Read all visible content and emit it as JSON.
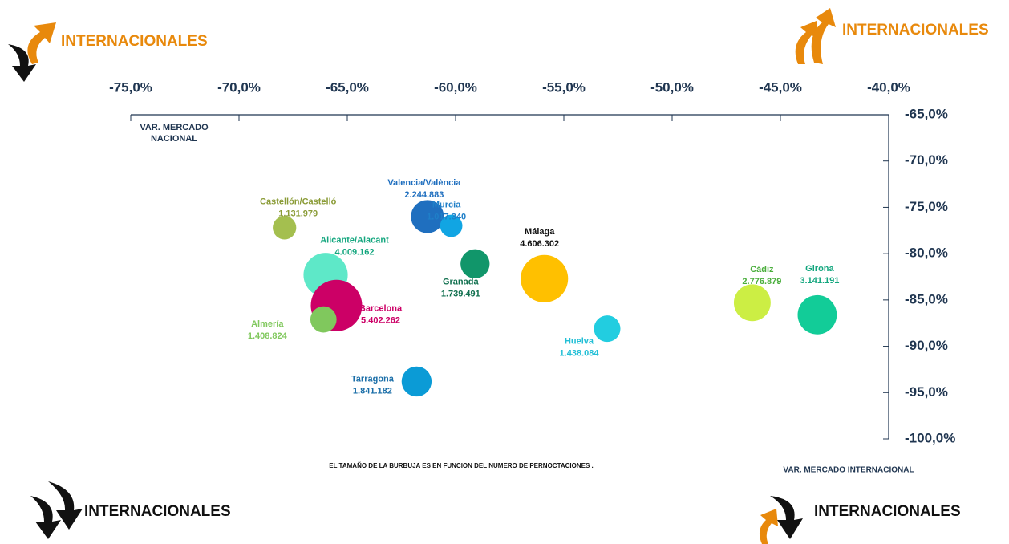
{
  "chart_data": {
    "type": "bubble",
    "xlabel": "VAR. MERCADO INTERNACIONAL",
    "ylabel": "VAR. MERCADO NACIONAL",
    "note": "EL TAMAÑO DE LA BURBUJA ES EN FUNCION  DEL NUMERO DE PERNOCTACIONES .",
    "corner_labels": [
      "INTERNACIONALES",
      "INTERNACIONALES",
      "INTERNACIONALES",
      "INTERNACIONALES"
    ],
    "xlim": [
      -75,
      -40
    ],
    "xticks": [
      {
        "value": -75,
        "label": "-75,0%"
      },
      {
        "value": -70,
        "label": "-70,0%"
      },
      {
        "value": -65,
        "label": "-65,0%"
      },
      {
        "value": -60,
        "label": "-60,0%"
      },
      {
        "value": -55,
        "label": "-55,0%"
      },
      {
        "value": -50,
        "label": "-50,0%"
      },
      {
        "value": -45,
        "label": "-45,0%"
      },
      {
        "value": -40,
        "label": "-40,0%"
      }
    ],
    "ylim": [
      -100,
      -65
    ],
    "yticks": [
      {
        "value": -65,
        "label": "-65,0%"
      },
      {
        "value": -70,
        "label": "-70,0%"
      },
      {
        "value": -75,
        "label": "-75,0%"
      },
      {
        "value": -80,
        "label": "-80,0%"
      },
      {
        "value": -85,
        "label": "-85,0%"
      },
      {
        "value": -90,
        "label": "-90,0%"
      },
      {
        "value": -95,
        "label": "-95,0%"
      },
      {
        "value": -100,
        "label": "-100,0%"
      }
    ],
    "series": [
      {
        "name": "Castellón/Castelló",
        "color": "#a4bf4f",
        "label_color": "#8a9b36",
        "x": -67.9,
        "y": -77.2,
        "size": 1131979,
        "size_label": "1.131.979"
      },
      {
        "name": "Valencia/València",
        "color": "#1f6fbf",
        "label_color": "#1f6fbf",
        "x": -61.3,
        "y": -76.0,
        "size": 2244883,
        "size_label": "2.244.883"
      },
      {
        "name": "Murcia",
        "color": "#11a5e3",
        "label_color": "#1f7fc8",
        "x": -60.2,
        "y": -77.0,
        "size": 1017340,
        "size_label": "1.017.340"
      },
      {
        "name": "Alicante/Alacant",
        "color": "#5ee8c8",
        "label_color": "#13a67e",
        "x": -66.0,
        "y": -82.3,
        "size": 4009162,
        "size_label": "4.009.162"
      },
      {
        "name": "Barcelona",
        "color": "#cc0066",
        "label_color": "#cc0066",
        "x": -65.5,
        "y": -85.6,
        "size": 5402262,
        "size_label": "5.402.262"
      },
      {
        "name": "Almería",
        "color": "#80c85d",
        "label_color": "#80c85d",
        "x": -66.1,
        "y": -87.1,
        "size": 1408824,
        "size_label": "1.408.824"
      },
      {
        "name": "Granada",
        "color": "#11966a",
        "label_color": "#11704f",
        "x": -59.1,
        "y": -81.1,
        "size": 1739491,
        "size_label": "1.739.491"
      },
      {
        "name": "Málaga",
        "color": "#ffc000",
        "label_color": "#111111",
        "x": -55.9,
        "y": -82.7,
        "size": 4606302,
        "size_label": "4.606.302"
      },
      {
        "name": "Huelva",
        "color": "#22cde0",
        "label_color": "#22bfd6",
        "x": -53.0,
        "y": -88.1,
        "size": 1438084,
        "size_label": "1.438.084"
      },
      {
        "name": "Tarragona",
        "color": "#0b9bd6",
        "label_color": "#1a6ea8",
        "x": -61.8,
        "y": -93.8,
        "size": 1841182,
        "size_label": "1.841.182"
      },
      {
        "name": "Cádiz",
        "color": "#ccee44",
        "label_color": "#4aae3c",
        "x": -46.3,
        "y": -85.3,
        "size": 2776879,
        "size_label": "2.776.879"
      },
      {
        "name": "Girona",
        "color": "#12cc98",
        "label_color": "#13a67e",
        "x": -43.3,
        "y": -86.6,
        "size": 3141191,
        "size_label": "3.141.191"
      }
    ]
  }
}
